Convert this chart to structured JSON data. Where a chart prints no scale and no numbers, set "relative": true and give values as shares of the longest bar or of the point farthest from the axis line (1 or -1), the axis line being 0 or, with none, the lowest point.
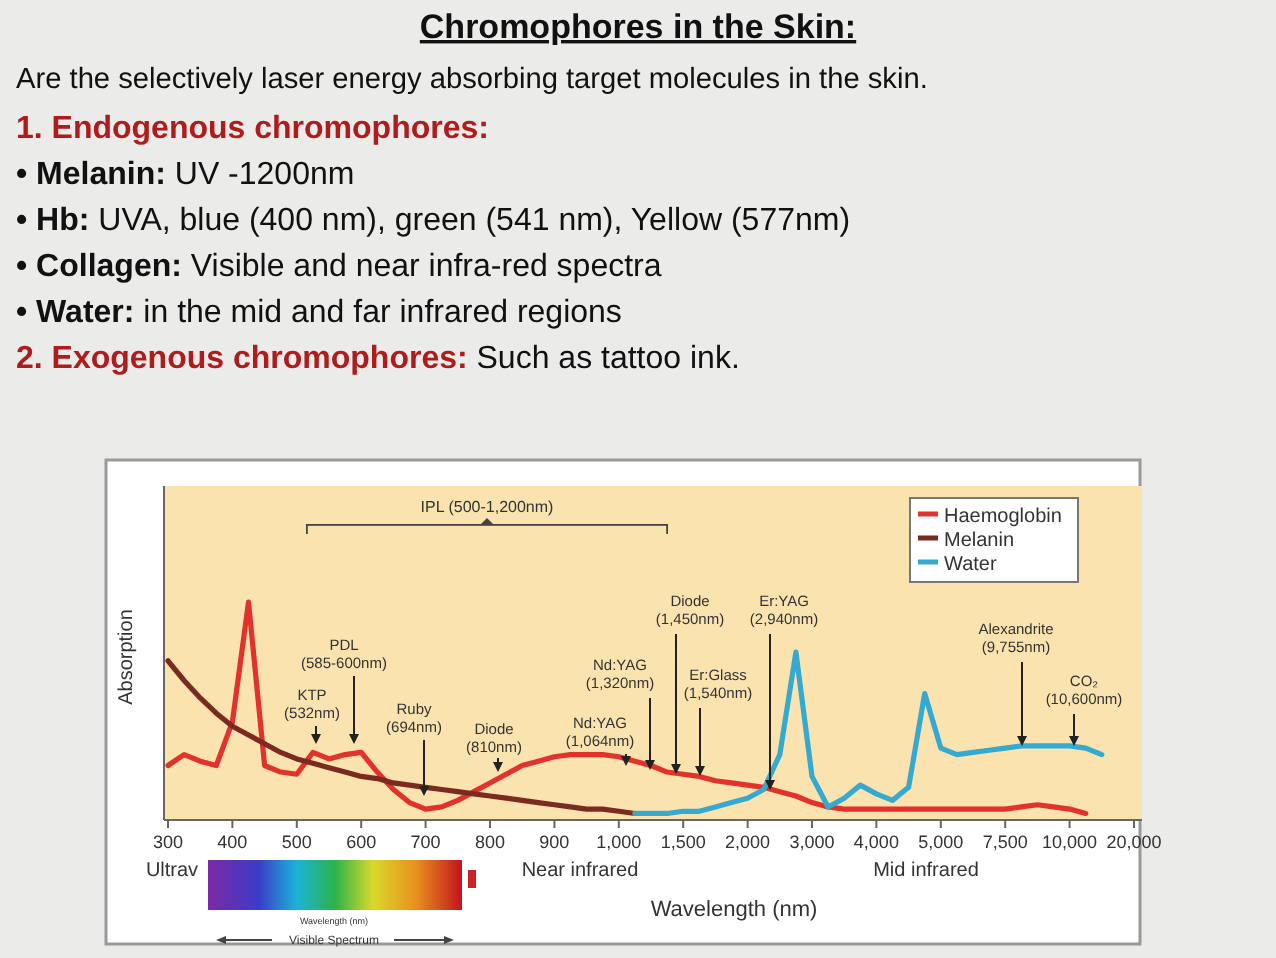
{
  "chart_data": {
    "type": "line",
    "title": "Chromophores in the Skin:",
    "subtitle": "Are the selectively laser energy absorbing target molecules in the skin.",
    "xlabel": "Wavelength (nm)",
    "ylabel": "Absorption",
    "relative": true,
    "legend": "top right",
    "categories": [
      "300",
      null,
      null,
      null,
      "400",
      null,
      null,
      null,
      "500",
      null,
      null,
      null,
      "600",
      null,
      null,
      null,
      "700",
      null,
      null,
      null,
      "800",
      null,
      null,
      null,
      "900",
      null,
      null,
      null,
      "1,000",
      null,
      null,
      null,
      "1,500",
      null,
      null,
      null,
      "2,000",
      null,
      null,
      null,
      "3,000",
      null,
      null,
      null,
      "4,000",
      null,
      null,
      null,
      "5,000",
      null,
      null,
      null,
      "7,500",
      null,
      null,
      null,
      "10,000",
      null,
      null,
      null,
      "20,000"
    ],
    "series": [
      {
        "name": "Haemoglobin",
        "color": "#e2322b",
        "values": [
          0.25,
          0.3,
          0.27,
          0.25,
          0.45,
          1.0,
          0.25,
          0.22,
          0.21,
          0.31,
          0.28,
          0.3,
          0.31,
          0.22,
          0.14,
          0.08,
          0.05,
          0.06,
          0.09,
          0.13,
          0.17,
          0.21,
          0.25,
          0.27,
          0.29,
          0.3,
          0.3,
          0.3,
          0.29,
          0.27,
          0.25,
          0.22,
          0.21,
          0.2,
          0.18,
          0.17,
          0.16,
          0.15,
          0.13,
          0.11,
          0.08,
          0.06,
          0.05,
          0.05,
          0.05,
          0.05,
          0.05,
          0.05,
          0.05,
          0.05,
          0.05,
          0.05,
          0.05,
          0.06,
          0.07,
          0.06,
          0.05,
          0.03,
          null,
          null,
          null
        ]
      },
      {
        "name": "Melanin",
        "color": "#7a2a1e",
        "values": [
          0.73,
          0.64,
          0.56,
          0.49,
          0.43,
          0.39,
          0.35,
          0.31,
          0.28,
          0.26,
          0.24,
          0.22,
          0.2,
          0.19,
          0.17,
          0.16,
          0.15,
          0.14,
          0.13,
          0.12,
          0.11,
          0.1,
          0.09,
          0.08,
          0.07,
          0.06,
          0.05,
          0.05,
          0.04,
          0.03,
          null,
          null,
          null,
          null,
          null,
          null,
          null,
          null,
          null,
          null,
          null,
          null,
          null,
          null,
          null,
          null,
          null,
          null,
          null,
          null,
          null,
          null,
          null,
          null,
          null,
          null,
          null,
          null,
          null,
          null,
          null
        ]
      },
      {
        "name": "Water",
        "color": "#35a9d0",
        "values": [
          null,
          null,
          null,
          null,
          null,
          null,
          null,
          null,
          null,
          null,
          null,
          null,
          null,
          null,
          null,
          null,
          null,
          null,
          null,
          null,
          null,
          null,
          null,
          null,
          null,
          null,
          null,
          null,
          null,
          0.03,
          0.03,
          0.03,
          0.04,
          0.04,
          0.06,
          0.08,
          0.1,
          0.14,
          0.3,
          0.77,
          0.2,
          0.06,
          0.1,
          0.16,
          0.12,
          0.09,
          0.15,
          0.58,
          0.33,
          0.3,
          0.31,
          0.32,
          0.33,
          0.34,
          0.34,
          0.34,
          0.34,
          0.33,
          0.3,
          null,
          null
        ]
      }
    ],
    "annotations": [
      "1. Endogenous chromophores:",
      "• Melanin: UV -1200nm",
      "• Hb: UVA, blue (400 nm), green (541 nm), Yellow (577nm)",
      "• Collagen: Visible and near infra-red spectra",
      "• Water: in the mid and far infrared regions",
      "2.  Exogenous chromophores: Such as tattoo ink.",
      "Wavelength (nm)",
      "Visible Spectrum",
      "KTP\n(532nm)",
      "PDL\n(585-600nm)",
      "Ruby\n(694nm)",
      "Diode\n(810nm)",
      "Nd:YAG\n(1,064nm)",
      "Nd:YAG\n(1,320nm)",
      "Diode\n(1,450nm)",
      "Er:Glass\n(1,540nm)",
      "Er:YAG\n(2,940nm)",
      "Alexandrite\n(9,755nm)",
      "CO₂\n(10,600nm)",
      "IPL (500-1,200nm)",
      "Ultrav",
      "Near infrared",
      "Mid infrared"
    ]
  }
}
